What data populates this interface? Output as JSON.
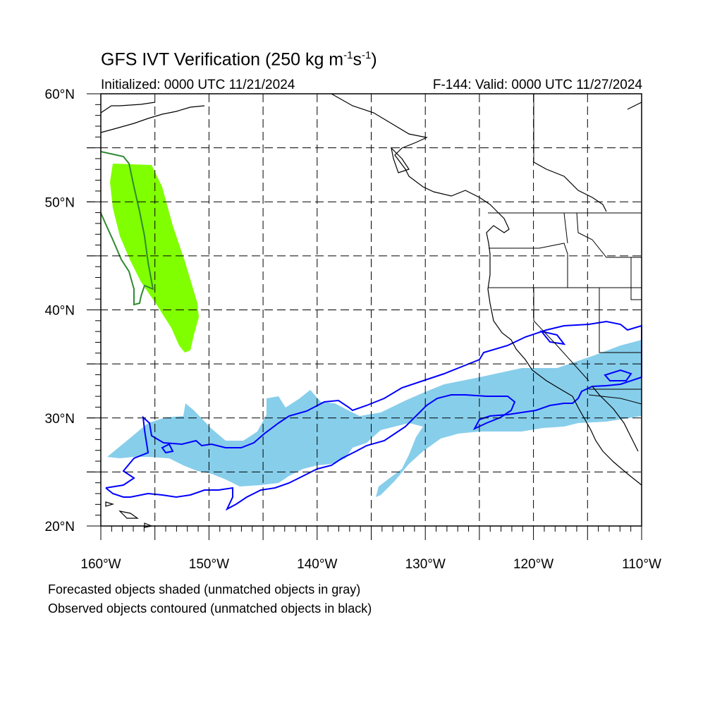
{
  "title": {
    "main": "GFS IVT Verification (250 kg m",
    "sup1": "-1",
    "mid": "s",
    "sup2": "-1",
    "end": ")"
  },
  "initialized": "Initialized: 0000 UTC 11/21/2024",
  "valid": "F-144: Valid: 0000 UTC 11/27/2024",
  "lat_labels": [
    "60°N",
    "50°N",
    "40°N",
    "30°N",
    "20°N"
  ],
  "lon_labels": [
    "160°W",
    "150°W",
    "140°W",
    "130°W",
    "120°W",
    "110°W"
  ],
  "footer": {
    "line1": "Forecasted objects shaded (unmatched objects in gray)",
    "line2": "Observed objects contoured (unmatched objects in black)"
  },
  "map": {
    "extent": {
      "lon_min": -160,
      "lon_max": -110,
      "lat_min": 20,
      "lat_max": 60
    },
    "grid": "dashed every 5 degrees",
    "colors": {
      "forecast_matched_1": "#87ceeb",
      "forecast_matched_2": "#80ff00",
      "observed_contour_1": "#0000ff",
      "observed_contour_2": "#2e8b2e",
      "coastline": "#000000"
    }
  }
}
